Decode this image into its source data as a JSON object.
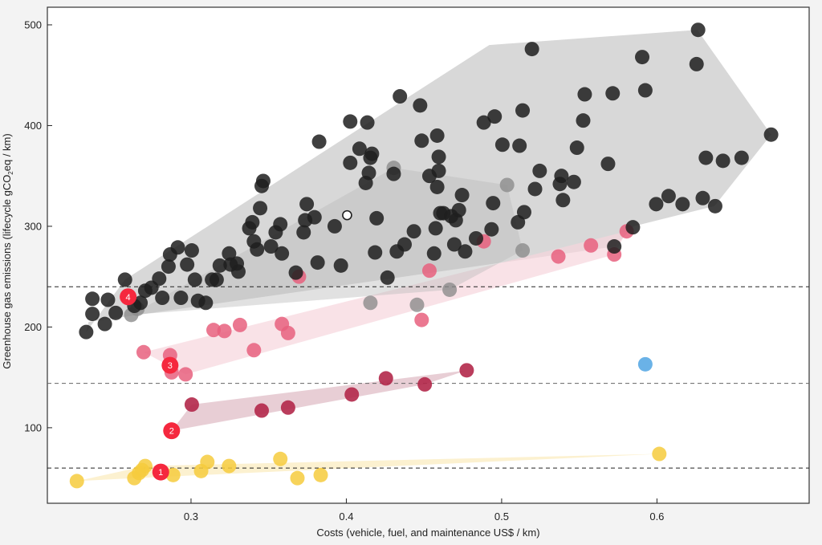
{
  "chart_data": {
    "type": "scatter",
    "title": "",
    "xlabel": "Costs (vehicle, fuel, and maintenance US$ / km)",
    "ylabel_parts": [
      "Greenhouse gas emissions (lifecycle gCO",
      "2",
      "eq / km)"
    ],
    "ylabel": "Greenhouse gas emissions (lifecycle gCO2eq / km)",
    "xlim": [
      0.2075,
      0.698
    ],
    "ylim": [
      25,
      517.5
    ],
    "xticks": [
      0.3,
      0.4,
      0.5,
      0.6
    ],
    "xtick_labels": [
      "0.3",
      "0.4",
      "0.5",
      "0.6"
    ],
    "yticks": [
      100,
      200,
      300,
      400,
      500
    ],
    "ytick_labels": [
      "100",
      "200",
      "300",
      "400",
      "500"
    ],
    "grid": false,
    "reference_lines": [
      240,
      144,
      60
    ],
    "colors": {
      "black": "#1e1e1e",
      "gray": "#8c8c8c",
      "pink": "#e8607e",
      "crimson": "#b3284a",
      "yellow": "#f6cb3d",
      "blue": "#5aaae4",
      "highlight": "#f5283e",
      "white": "#ffffff",
      "hull_black": "#c8c8c8",
      "hull_pink": "#f7d5dd",
      "hull_crimson": "#dcb3bf",
      "hull_yellow": "#fbeec4",
      "hull_gray": "#bdbdbd"
    },
    "series": [
      {
        "name": "black",
        "color": "#1e1e1e",
        "hull": [
          [
            0.2325,
            195
          ],
          [
            0.2575,
            247
          ],
          [
            0.492,
            480
          ],
          [
            0.626,
            495
          ],
          [
            0.6735,
            391
          ],
          [
            0.637,
            320
          ],
          [
            0.585,
            300
          ],
          [
            0.573,
            280
          ],
          [
            0.234,
            205
          ]
        ],
        "points": [
          [
            0.2325,
            195
          ],
          [
            0.2365,
            213
          ],
          [
            0.2365,
            228
          ],
          [
            0.2445,
            203
          ],
          [
            0.2465,
            227
          ],
          [
            0.2515,
            214
          ],
          [
            0.2575,
            247
          ],
          [
            0.2635,
            221
          ],
          [
            0.2675,
            224
          ],
          [
            0.2705,
            236
          ],
          [
            0.2745,
            239
          ],
          [
            0.2795,
            248
          ],
          [
            0.2815,
            229
          ],
          [
            0.2855,
            260
          ],
          [
            0.2865,
            272
          ],
          [
            0.2915,
            279
          ],
          [
            0.2935,
            229
          ],
          [
            0.2975,
            262
          ],
          [
            0.3005,
            276
          ],
          [
            0.3025,
            247
          ],
          [
            0.3045,
            226
          ],
          [
            0.3095,
            224
          ],
          [
            0.3135,
            247
          ],
          [
            0.3165,
            247
          ],
          [
            0.3185,
            261
          ],
          [
            0.3245,
            273
          ],
          [
            0.3255,
            262
          ],
          [
            0.3295,
            263
          ],
          [
            0.3305,
            255
          ],
          [
            0.3375,
            298
          ],
          [
            0.3395,
            304
          ],
          [
            0.3405,
            285
          ],
          [
            0.3425,
            277
          ],
          [
            0.3445,
            318
          ],
          [
            0.3455,
            340
          ],
          [
            0.3465,
            345
          ],
          [
            0.3515,
            280
          ],
          [
            0.3545,
            294
          ],
          [
            0.3575,
            302
          ],
          [
            0.3585,
            273
          ],
          [
            0.3675,
            254
          ],
          [
            0.3725,
            294
          ],
          [
            0.3735,
            306
          ],
          [
            0.3745,
            322
          ],
          [
            0.3795,
            309
          ],
          [
            0.3815,
            264
          ],
          [
            0.3825,
            384
          ],
          [
            0.3925,
            300
          ],
          [
            0.3965,
            261
          ],
          [
            0.4025,
            404
          ],
          [
            0.4025,
            363
          ],
          [
            0.4085,
            377
          ],
          [
            0.4125,
            343
          ],
          [
            0.4135,
            403
          ],
          [
            0.4145,
            353
          ],
          [
            0.4155,
            368
          ],
          [
            0.4165,
            372
          ],
          [
            0.4185,
            274
          ],
          [
            0.4195,
            308
          ],
          [
            0.4265,
            249
          ],
          [
            0.4305,
            352
          ],
          [
            0.4325,
            275
          ],
          [
            0.4345,
            429
          ],
          [
            0.4375,
            282
          ],
          [
            0.4435,
            295
          ],
          [
            0.4475,
            420
          ],
          [
            0.4485,
            385
          ],
          [
            0.4535,
            350
          ],
          [
            0.4565,
            273
          ],
          [
            0.4575,
            298
          ],
          [
            0.4585,
            339
          ],
          [
            0.4585,
            390
          ],
          [
            0.4595,
            355
          ],
          [
            0.4595,
            369
          ],
          [
            0.4605,
            313
          ],
          [
            0.4625,
            313
          ],
          [
            0.4675,
            310
          ],
          [
            0.4695,
            282
          ],
          [
            0.4705,
            306
          ],
          [
            0.4725,
            316
          ],
          [
            0.4745,
            331
          ],
          [
            0.4765,
            275
          ],
          [
            0.4835,
            288
          ],
          [
            0.4885,
            403
          ],
          [
            0.4935,
            297
          ],
          [
            0.4945,
            323
          ],
          [
            0.4955,
            409
          ],
          [
            0.5005,
            381
          ],
          [
            0.5105,
            304
          ],
          [
            0.5115,
            380
          ],
          [
            0.5135,
            415
          ],
          [
            0.5145,
            314
          ],
          [
            0.5195,
            476
          ],
          [
            0.5215,
            337
          ],
          [
            0.5245,
            355
          ],
          [
            0.5375,
            342
          ],
          [
            0.5395,
            326
          ],
          [
            0.5385,
            350
          ],
          [
            0.5465,
            344
          ],
          [
            0.5485,
            378
          ],
          [
            0.5525,
            405
          ],
          [
            0.5535,
            431
          ],
          [
            0.5685,
            362
          ],
          [
            0.5715,
            432
          ],
          [
            0.5725,
            280
          ],
          [
            0.5845,
            299
          ],
          [
            0.5905,
            468
          ],
          [
            0.5925,
            435
          ],
          [
            0.5995,
            322
          ],
          [
            0.6075,
            330
          ],
          [
            0.6165,
            322
          ],
          [
            0.6255,
            461
          ],
          [
            0.6265,
            495
          ],
          [
            0.6295,
            328
          ],
          [
            0.6315,
            368
          ],
          [
            0.6375,
            320
          ],
          [
            0.6425,
            365
          ],
          [
            0.6545,
            368
          ],
          [
            0.6735,
            391
          ]
        ]
      },
      {
        "name": "gray",
        "color": "#8c8c8c",
        "hull": [
          [
            0.2615,
            212
          ],
          [
            0.4305,
            358
          ],
          [
            0.5035,
            341
          ],
          [
            0.5135,
            276
          ],
          [
            0.4665,
            237
          ],
          [
            0.2615,
            212
          ]
        ],
        "points": [
          [
            0.2615,
            212
          ],
          [
            0.2655,
            218
          ],
          [
            0.4155,
            224
          ],
          [
            0.4305,
            358
          ],
          [
            0.4455,
            222
          ],
          [
            0.4665,
            237
          ],
          [
            0.5035,
            341
          ],
          [
            0.5135,
            276
          ]
        ]
      },
      {
        "name": "pink",
        "color": "#e8607e",
        "hull": [
          [
            0.2695,
            175
          ],
          [
            0.5805,
            295
          ],
          [
            0.5725,
            272
          ],
          [
            0.2965,
            153
          ],
          [
            0.2695,
            175
          ]
        ],
        "points": [
          [
            0.2695,
            175
          ],
          [
            0.2865,
            172
          ],
          [
            0.2875,
            155
          ],
          [
            0.2965,
            153
          ],
          [
            0.3145,
            197
          ],
          [
            0.3215,
            196
          ],
          [
            0.3315,
            202
          ],
          [
            0.3405,
            177
          ],
          [
            0.3585,
            203
          ],
          [
            0.3625,
            194
          ],
          [
            0.3695,
            250
          ],
          [
            0.4485,
            207
          ],
          [
            0.4535,
            256
          ],
          [
            0.4885,
            285
          ],
          [
            0.5365,
            270
          ],
          [
            0.5575,
            281
          ],
          [
            0.5725,
            272
          ],
          [
            0.5805,
            295
          ]
        ]
      },
      {
        "name": "crimson",
        "color": "#b3284a",
        "hull": [
          [
            0.3005,
            123
          ],
          [
            0.4775,
            157
          ],
          [
            0.4505,
            143
          ],
          [
            0.2875,
            97
          ],
          [
            0.3005,
            123
          ]
        ],
        "points": [
          [
            0.3005,
            123
          ],
          [
            0.3455,
            117
          ],
          [
            0.3625,
            120
          ],
          [
            0.4035,
            133
          ],
          [
            0.4255,
            149
          ],
          [
            0.4505,
            143
          ],
          [
            0.4775,
            157
          ]
        ]
      },
      {
        "name": "yellow",
        "color": "#f6cb3d",
        "hull": [
          [
            0.2265,
            47
          ],
          [
            0.2705,
            62
          ],
          [
            0.6015,
            74
          ],
          [
            0.2645,
            50
          ],
          [
            0.2265,
            47
          ]
        ],
        "points": [
          [
            0.2265,
            47
          ],
          [
            0.2635,
            50
          ],
          [
            0.2665,
            55
          ],
          [
            0.2685,
            58
          ],
          [
            0.2705,
            62
          ],
          [
            0.2885,
            53
          ],
          [
            0.3065,
            57
          ],
          [
            0.3105,
            66
          ],
          [
            0.3245,
            62
          ],
          [
            0.3575,
            69
          ],
          [
            0.3685,
            50
          ],
          [
            0.3835,
            53
          ],
          [
            0.6015,
            74
          ]
        ]
      },
      {
        "name": "blue",
        "color": "#5aaae4",
        "points": [
          [
            0.5925,
            163
          ]
        ]
      },
      {
        "name": "white",
        "color": "#ffffff",
        "points": [
          [
            0.4005,
            311
          ]
        ]
      }
    ],
    "highlights": [
      {
        "label": "1",
        "x": 0.2805,
        "y": 56
      },
      {
        "label": "2",
        "x": 0.2875,
        "y": 97
      },
      {
        "label": "3",
        "x": 0.2865,
        "y": 162
      },
      {
        "label": "4",
        "x": 0.2595,
        "y": 230
      }
    ]
  }
}
